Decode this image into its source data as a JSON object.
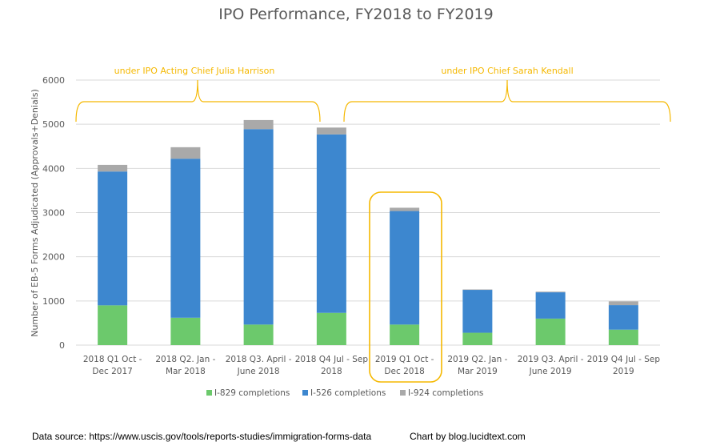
{
  "chart_data": {
    "type": "bar",
    "stacked": true,
    "title": "IPO Performance, FY2018 to FY2019",
    "xlabel": "",
    "ylabel": "Number  of EB-5 Forms Adjudicated (Approvals+Denials)",
    "ylim": [
      0,
      6000
    ],
    "yticks": [
      0,
      1000,
      2000,
      3000,
      4000,
      5000,
      6000
    ],
    "grid": true,
    "legend_position": "bottom",
    "categories": [
      [
        "2018 Q1 Oct -",
        "Dec 2017"
      ],
      [
        "2018 Q2. Jan -",
        "Mar 2018"
      ],
      [
        "2018 Q3. April -",
        "June 2018"
      ],
      [
        "2018 Q4 Jul - Sep",
        "2018"
      ],
      [
        "2019  Q1  Oct -",
        "Dec 2018"
      ],
      [
        "2019 Q2. Jan -",
        "Mar 2019"
      ],
      [
        "2019 Q3. April -",
        "June 2019"
      ],
      [
        "2019 Q4 Jul - Sep",
        "2019"
      ]
    ],
    "series": [
      {
        "name": "I-829 completions",
        "color": "#6cc96c",
        "values": [
          900,
          620,
          465,
          730,
          465,
          280,
          600,
          350
        ]
      },
      {
        "name": "I-526 completions",
        "color": "#3d87cf",
        "values": [
          3030,
          3600,
          4425,
          4040,
          2570,
          970,
          595,
          555
        ]
      },
      {
        "name": "I-924 completions",
        "color": "#a9a9a9",
        "values": [
          150,
          260,
          205,
          155,
          75,
          10,
          15,
          85
        ]
      }
    ],
    "annotations": {
      "brace_left_label": "under IPO Acting Chief Julia Harrison",
      "brace_right_label": "under IPO Chief Sarah Kendall",
      "highlight_category_index": 4,
      "accent_color": "#f5b800"
    }
  },
  "footer": {
    "source": "Data source: https://www.uscis.gov/tools/reports-studies/immigration-forms-data",
    "credit": "Chart by blog.lucidtext.com"
  }
}
